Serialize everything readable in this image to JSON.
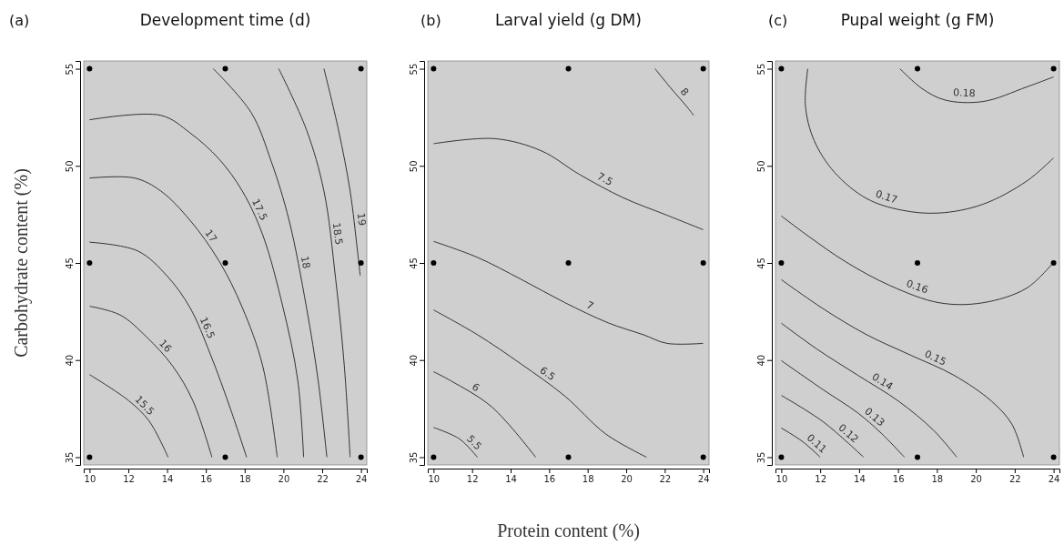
{
  "chart_data": [
    {
      "type": "line",
      "title": "Development time (d)",
      "annotations": [
        "(a)"
      ],
      "ylabel": "Carbohydrate content (%)",
      "xlim": [
        9.7,
        24.3
      ],
      "ylim": [
        34.6,
        55.4
      ],
      "xticks": [
        10,
        12,
        14,
        16,
        18,
        20,
        22,
        24
      ],
      "yticks": [
        35,
        40,
        45,
        50,
        55
      ],
      "series": [
        {
          "name": "15.5",
          "color": "#333333",
          "x": [
            10,
            12.03,
            13.08,
            14.05
          ],
          "values": [
            39.25,
            37.9,
            36.85,
            35
          ]
        },
        {
          "name": "16",
          "color": "#333333",
          "x": [
            10,
            11.58,
            12.93,
            14.28,
            15.33,
            16.31
          ],
          "values": [
            42.77,
            42.32,
            41.2,
            39.7,
            37.9,
            35
          ]
        },
        {
          "name": "16.5",
          "color": "#333333",
          "x": [
            10,
            12.48,
            13.98,
            15.18,
            16.23,
            17.28,
            18.1
          ],
          "values": [
            46.07,
            45.62,
            44.35,
            42.7,
            40.3,
            37.45,
            35
          ]
        },
        {
          "name": "17",
          "color": "#333333",
          "x": [
            10,
            12.33,
            13.68,
            15.18,
            16.68,
            17.88,
            18.93,
            19.68
          ],
          "values": [
            49.37,
            49.37,
            48.7,
            47.2,
            45.1,
            42.7,
            39.7,
            35
          ]
        },
        {
          "name": "17.5",
          "color": "#333333",
          "x": [
            10,
            13.68,
            15.18,
            16.68,
            17.88,
            18.93,
            19.98,
            20.74,
            21.04
          ],
          "values": [
            52.37,
            52.6,
            51.7,
            50.35,
            48.7,
            46.45,
            42.7,
            38.95,
            35
          ]
        },
        {
          "name": "18",
          "color": "#333333",
          "x": [
            16.38,
            18.33,
            19.38,
            20.29,
            21.19,
            21.79,
            22.24
          ],
          "values": [
            55,
            52.75,
            50.2,
            47.2,
            42.7,
            38.95,
            35
          ]
        },
        {
          "name": "18.5",
          "color": "#333333",
          "x": [
            19.76,
            21.19,
            22.09,
            22.69,
            23.14,
            23.44
          ],
          "values": [
            55,
            51.85,
            48.7,
            44.2,
            39.7,
            35
          ]
        },
        {
          "name": "19",
          "color": "#333333",
          "x": [
            22.09,
            22.84,
            23.44,
            23.81,
            23.96
          ],
          "values": [
            55,
            51.85,
            48.7,
            45.7,
            44.35
          ]
        },
        {
          "type": "scatter",
          "color": "#000000",
          "x": [
            10,
            17,
            24,
            10,
            17,
            24,
            10,
            17,
            24
          ],
          "values": [
            35,
            35,
            35,
            45,
            45,
            45,
            55,
            55,
            55
          ]
        }
      ]
    },
    {
      "type": "line",
      "title": "Larval yield (g DM)",
      "annotations": [
        "(b)"
      ],
      "xlabel": "Protein content (%)",
      "xlim": [
        9.7,
        24.3
      ],
      "ylim": [
        34.6,
        55.4
      ],
      "xticks": [
        10,
        12,
        14,
        16,
        18,
        20,
        22,
        24
      ],
      "yticks": [
        35,
        40,
        45,
        50,
        55
      ],
      "series": [
        {
          "name": "5.5",
          "color": "#333333",
          "x": [
            10,
            11.36,
            12.27
          ],
          "values": [
            36.53,
            35.93,
            35
          ]
        },
        {
          "name": "6",
          "color": "#333333",
          "x": [
            10,
            10.9,
            13.03,
            15.3
          ],
          "values": [
            39.4,
            38.93,
            37.58,
            35
          ]
        },
        {
          "name": "6.5",
          "color": "#333333",
          "x": [
            10,
            12.27,
            14.54,
            16.81,
            18.93,
            21.05
          ],
          "values": [
            42.58,
            41.31,
            39.8,
            38.15,
            36.2,
            35
          ]
        },
        {
          "name": "7",
          "color": "#333333",
          "x": [
            10,
            12.27,
            14.54,
            16.81,
            19.08,
            20.9,
            22.11,
            24
          ],
          "values": [
            46.11,
            45.29,
            44.16,
            42.96,
            41.91,
            41.3,
            40.86,
            40.86
          ]
        },
        {
          "name": "7.5",
          "color": "#333333",
          "x": [
            10,
            13.18,
            15.6,
            17.57,
            19.84,
            22.11,
            24
          ],
          "values": [
            51.14,
            51.4,
            50.77,
            49.56,
            48.36,
            47.46,
            46.71
          ]
        },
        {
          "name": "8",
          "color": "#333333",
          "x": [
            21.5,
            22.26,
            23.17,
            23.5
          ],
          "values": [
            55,
            54.07,
            53.02,
            52.6
          ]
        },
        {
          "type": "scatter",
          "color": "#000000",
          "x": [
            10,
            17,
            24,
            10,
            17,
            24,
            10,
            17,
            24
          ],
          "values": [
            35,
            35,
            35,
            45,
            45,
            45,
            55,
            55,
            55
          ]
        }
      ]
    },
    {
      "type": "line",
      "title": "Pupal weight (g FM)",
      "annotations": [
        "(c)"
      ],
      "xlim": [
        9.7,
        24.3
      ],
      "ylim": [
        34.6,
        55.4
      ],
      "xticks": [
        10,
        12,
        14,
        16,
        18,
        20,
        22,
        24
      ],
      "yticks": [
        35,
        40,
        45,
        50,
        55
      ],
      "series": [
        {
          "name": "0.11",
          "color": "#333333",
          "x": [
            10,
            11.1,
            12
          ],
          "values": [
            36.5,
            35.8,
            35
          ]
        },
        {
          "name": "0.12",
          "color": "#333333",
          "x": [
            10,
            12.14,
            14.23
          ],
          "values": [
            38.18,
            36.83,
            35
          ]
        },
        {
          "name": "0.13",
          "color": "#333333",
          "x": [
            10,
            12.14,
            13.93,
            15.13,
            16.33
          ],
          "values": [
            39.97,
            38.48,
            37.28,
            36.24,
            35
          ]
        },
        {
          "name": "0.14",
          "color": "#333333",
          "x": [
            10,
            11.84,
            13.93,
            16.03,
            17.82,
            19.02
          ],
          "values": [
            41.9,
            40.56,
            39.22,
            37.88,
            36.39,
            35
          ]
        },
        {
          "name": "0.15",
          "color": "#333333",
          "x": [
            10,
            12.14,
            14.38,
            16.63,
            18.87,
            20.81,
            21.86,
            22.46
          ],
          "values": [
            44.14,
            42.65,
            41.31,
            40.26,
            39.22,
            37.88,
            36.69,
            35
          ]
        },
        {
          "name": "0.16",
          "color": "#333333",
          "x": [
            10,
            11.39,
            13.34,
            15.58,
            18.12,
            20.36,
            22.61,
            24
          ],
          "values": [
            47.42,
            46.38,
            45.04,
            43.84,
            42.95,
            42.95,
            43.7,
            45.04
          ]
        },
        {
          "name": "0.17",
          "color": "#333333",
          "x": [
            11.36,
            11.24,
            11.69,
            12.74,
            14.38,
            16.18,
            18.12,
            20.36,
            22.61,
            24
          ],
          "values": [
            55,
            53.09,
            51.3,
            49.66,
            48.32,
            47.72,
            47.57,
            48.02,
            49.21,
            50.41
          ]
        },
        {
          "name": "0.18",
          "color": "#333333",
          "x": [
            16.1,
            17.22,
            18.41,
            20.36,
            22.61,
            24
          ],
          "values": [
            55,
            53.99,
            53.39,
            53.31,
            54.06,
            54.58
          ]
        },
        {
          "type": "scatter",
          "color": "#000000",
          "x": [
            10,
            17,
            24,
            10,
            17,
            24,
            10,
            17,
            24
          ],
          "values": [
            35,
            35,
            35,
            45,
            45,
            45,
            55,
            55,
            55
          ]
        }
      ]
    }
  ]
}
